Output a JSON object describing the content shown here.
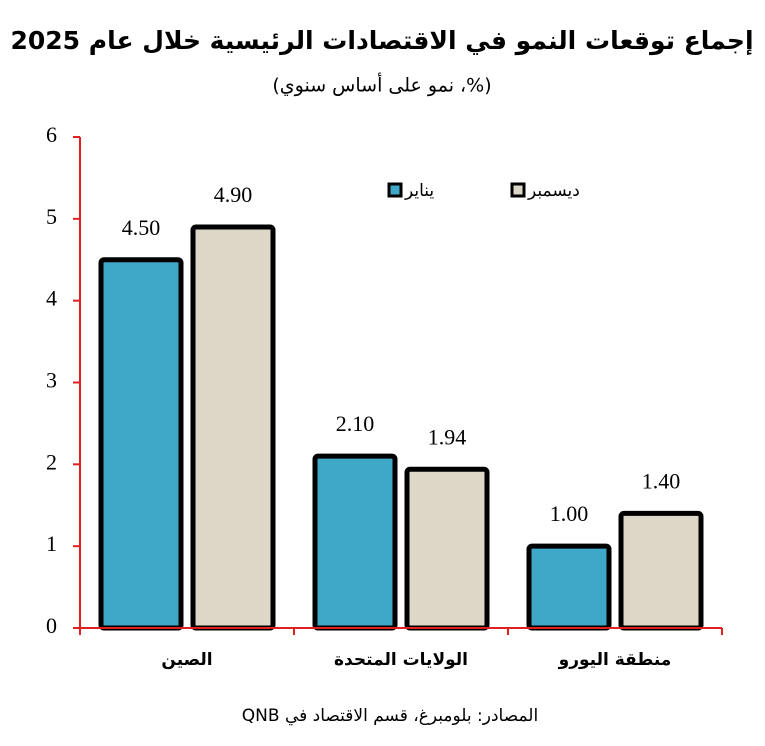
{
  "chart_data": {
    "type": "bar",
    "title": "إجماع توقعات النمو في الاقتصادات الرئيسية خلال عام 2025",
    "subtitle": "(%، نمو على أساس سنوي)",
    "source": "المصادر: بلومبرغ، قسم الاقتصاد في QNB",
    "categories": [
      "الصين",
      "الولايات المتحدة",
      "منطقة اليورو"
    ],
    "series": [
      {
        "name": "يناير",
        "color": "#3fa7c8",
        "values": [
          4.5,
          2.1,
          1.0
        ],
        "value_labels": [
          "4.50",
          "2.10",
          "1.00"
        ]
      },
      {
        "name": "ديسمبر",
        "color": "#ddd7c8",
        "values": [
          4.9,
          1.94,
          1.4
        ],
        "value_labels": [
          "4.90",
          "1.94",
          "1.40"
        ]
      }
    ],
    "ylim": [
      0,
      6
    ],
    "yticks": [
      0,
      1,
      2,
      3,
      4,
      5,
      6
    ],
    "axis_color": "#e02020"
  }
}
